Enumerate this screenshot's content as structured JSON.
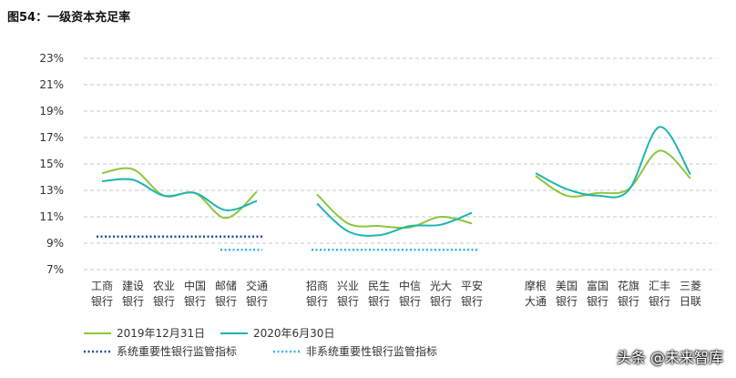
{
  "figure": {
    "title": "图54：一级资本充足率"
  },
  "watermark": "头条 @未来智库",
  "chart_data": {
    "type": "line",
    "title": "",
    "xlabel": "",
    "ylabel": "",
    "ylim": [
      7,
      23
    ],
    "yticks": [
      7,
      9,
      11,
      13,
      15,
      17,
      19,
      21,
      23
    ],
    "ytick_labels": [
      "7%",
      "9%",
      "11%",
      "13%",
      "15%",
      "17%",
      "19%",
      "21%",
      "23%"
    ],
    "grid": "horizontal-dashed",
    "legend": "bottom-left",
    "groups": [
      {
        "categories": [
          [
            "工商",
            "银行"
          ],
          [
            "建设",
            "银行"
          ],
          [
            "农业",
            "银行"
          ],
          [
            "中国",
            "银行"
          ],
          [
            "邮储",
            "银行"
          ],
          [
            "交通",
            "银行"
          ]
        ],
        "series": [
          {
            "name": "2019年12月31日",
            "values": [
              14.3,
              14.6,
              12.6,
              12.8,
              10.9,
              12.9
            ]
          },
          {
            "name": "2020年6月30日",
            "values": [
              13.7,
              13.8,
              12.6,
              12.8,
              11.5,
              12.2
            ]
          }
        ],
        "reference_lines": [
          {
            "name": "系统重要性银行监管指标",
            "value": 9.5
          },
          {
            "name": "非系统重要性银行监管指标",
            "value": 8.5,
            "span": [
              4,
              5
            ]
          }
        ]
      },
      {
        "categories": [
          [
            "招商",
            "银行"
          ],
          [
            "兴业",
            "银行"
          ],
          [
            "民生",
            "银行"
          ],
          [
            "中信",
            "银行"
          ],
          [
            "光大",
            "银行"
          ],
          [
            "平安",
            "银行"
          ]
        ],
        "series": [
          {
            "name": "2019年12月31日",
            "values": [
              12.7,
              10.5,
              10.3,
              10.2,
              11.0,
              10.5
            ]
          },
          {
            "name": "2020年6月30日",
            "values": [
              12.0,
              9.9,
              9.6,
              10.3,
              10.4,
              11.3
            ]
          }
        ],
        "reference_lines": [
          {
            "name": "非系统重要性银行监管指标",
            "value": 8.5
          }
        ]
      },
      {
        "categories": [
          [
            "摩根",
            "大通"
          ],
          [
            "美国",
            "银行"
          ],
          [
            "富国",
            "银行"
          ],
          [
            "花旗",
            "银行"
          ],
          [
            "汇丰",
            "银行"
          ],
          [
            "三菱",
            "日联"
          ]
        ],
        "series": [
          {
            "name": "2019年12月31日",
            "values": [
              14.1,
              12.6,
              12.8,
              13.1,
              16.0,
              13.9
            ]
          },
          {
            "name": "2020年6月30日",
            "values": [
              14.3,
              13.1,
              12.6,
              13.0,
              17.8,
              14.2
            ]
          }
        ],
        "reference_lines": []
      }
    ],
    "legend_entries": [
      {
        "name": "2019年12月31日",
        "style": "solid",
        "color": "#8dc63f"
      },
      {
        "name": "2020年6月30日",
        "style": "solid",
        "color": "#1fb5b0"
      },
      {
        "name": "系统重要性银行监管指标",
        "style": "dotted",
        "color": "#1f4e9a"
      },
      {
        "name": "非系统重要性银行监管指标",
        "style": "dotted",
        "color": "#33b5e5"
      }
    ],
    "colors": {
      "series_2019": "#8dc63f",
      "series_2020": "#1fb5b0",
      "ref_systemic": "#1f4e9a",
      "ref_nonsystemic": "#33b5e5",
      "grid": "#c8c8c8",
      "axis_text": "#333333"
    }
  }
}
